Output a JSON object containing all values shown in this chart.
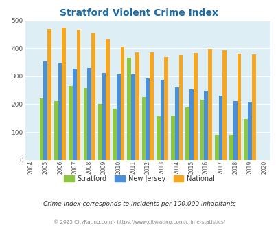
{
  "title": "Stratford Violent Crime Index",
  "years": [
    2004,
    2005,
    2006,
    2007,
    2008,
    2009,
    2010,
    2011,
    2012,
    2013,
    2014,
    2015,
    2016,
    2017,
    2018,
    2019,
    2020
  ],
  "stratford": [
    null,
    222,
    210,
    265,
    258,
    201,
    185,
    365,
    227,
    158,
    160,
    190,
    217,
    91,
    90,
    147,
    null
  ],
  "new_jersey": [
    null,
    353,
    350,
    328,
    329,
    311,
    308,
    308,
    292,
    288,
    261,
    254,
    247,
    230,
    210,
    208,
    null
  ],
  "national": [
    null,
    469,
    474,
    467,
    455,
    432,
    405,
    387,
    387,
    368,
    377,
    384,
    398,
    394,
    380,
    379,
    null
  ],
  "color_stratford": "#8dc63f",
  "color_nj": "#4a90d9",
  "color_national": "#f5a623",
  "ylim": [
    0,
    500
  ],
  "yticks": [
    0,
    100,
    200,
    300,
    400,
    500
  ],
  "bg_color": "#ddeef5",
  "subtitle": "Crime Index corresponds to incidents per 100,000 inhabitants",
  "footer": "© 2025 CityRating.com - https://www.cityrating.com/crime-statistics/",
  "bar_width": 0.27,
  "title_color": "#1a6bab",
  "subtitle_color": "#333333",
  "footer_color": "#888888"
}
